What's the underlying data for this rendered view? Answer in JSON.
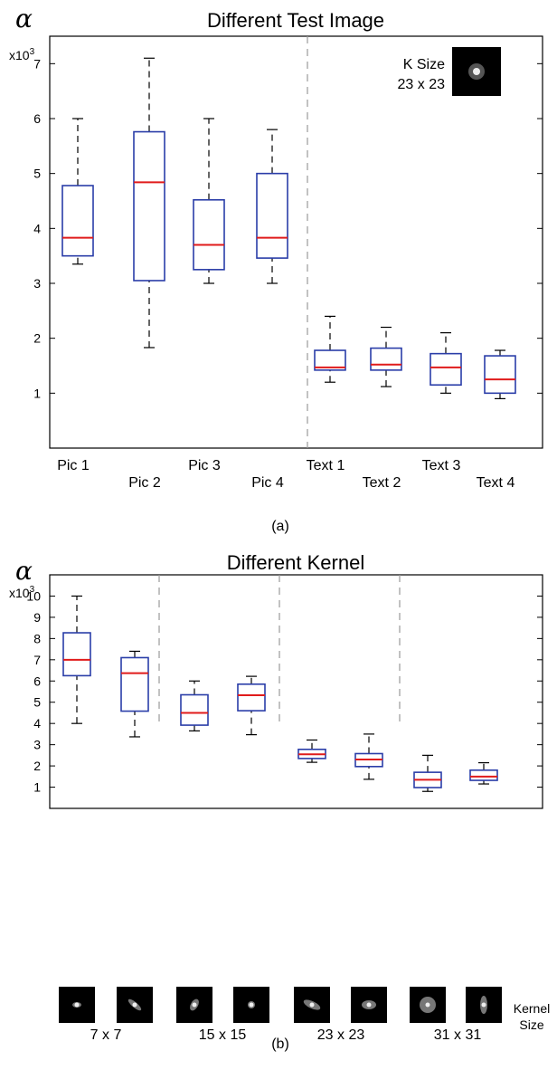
{
  "chart_data": [
    {
      "type": "boxplot",
      "title": "Different Test Image",
      "ylabel": "α",
      "yscale_label": "x10",
      "yscale_exponent": "3",
      "ylim": [
        0,
        7.5
      ],
      "yticks": [
        "1",
        "2",
        "3",
        "4",
        "5",
        "6",
        "7"
      ],
      "categories": [
        "Pic 1",
        "Pic 2",
        "Pic 3",
        "Pic 4",
        "Text 1",
        "Text 2",
        "Text 3",
        "Text 4"
      ],
      "boxes": [
        {
          "min": 3.35,
          "q1": 3.5,
          "median": 3.83,
          "q3": 4.78,
          "max": 6.0
        },
        {
          "min": 1.83,
          "q1": 3.05,
          "median": 4.84,
          "q3": 5.76,
          "max": 7.1
        },
        {
          "min": 3.0,
          "q1": 3.25,
          "median": 3.7,
          "q3": 4.52,
          "max": 6.0
        },
        {
          "min": 3.0,
          "q1": 3.46,
          "median": 3.83,
          "q3": 5.0,
          "max": 5.8
        },
        {
          "min": 1.2,
          "q1": 1.42,
          "median": 1.47,
          "q3": 1.78,
          "max": 2.4
        },
        {
          "min": 1.12,
          "q1": 1.42,
          "median": 1.52,
          "q3": 1.82,
          "max": 2.2
        },
        {
          "min": 1.0,
          "q1": 1.15,
          "median": 1.47,
          "q3": 1.72,
          "max": 2.1
        },
        {
          "min": 0.9,
          "q1": 1.0,
          "median": 1.25,
          "q3": 1.68,
          "max": 1.78
        }
      ],
      "inset_label_line1": "K Size",
      "inset_label_line2": "23 x 23",
      "caption": "(a)"
    },
    {
      "type": "boxplot",
      "title": "Different Kernel",
      "ylabel": "α",
      "yscale_label": "x10",
      "yscale_exponent": "3",
      "ylim": [
        0,
        11
      ],
      "yticks": [
        "1",
        "2",
        "3",
        "4",
        "5",
        "6",
        "7",
        "8",
        "9",
        "10"
      ],
      "groups": [
        "7 x 7",
        "15 x 15",
        "23 x 23",
        "31 x 31"
      ],
      "boxes": [
        {
          "min": 4.0,
          "q1": 6.25,
          "median": 7.0,
          "q3": 8.27,
          "max": 10.0
        },
        {
          "min": 3.37,
          "q1": 4.58,
          "median": 6.37,
          "q3": 7.1,
          "max": 7.4
        },
        {
          "min": 3.65,
          "q1": 3.92,
          "median": 4.5,
          "q3": 5.35,
          "max": 6.0
        },
        {
          "min": 3.47,
          "q1": 4.6,
          "median": 5.33,
          "q3": 5.85,
          "max": 6.22
        },
        {
          "min": 2.17,
          "q1": 2.35,
          "median": 2.55,
          "q3": 2.78,
          "max": 3.22
        },
        {
          "min": 1.37,
          "q1": 1.97,
          "median": 2.3,
          "q3": 2.58,
          "max": 3.5
        },
        {
          "min": 0.8,
          "q1": 0.98,
          "median": 1.35,
          "q3": 1.7,
          "max": 2.5
        },
        {
          "min": 1.15,
          "q1": 1.32,
          "median": 1.5,
          "q3": 1.8,
          "max": 2.15
        }
      ],
      "kernel_label_line1": "Kernel",
      "kernel_label_line2": "Size",
      "caption": "(b)"
    }
  ]
}
